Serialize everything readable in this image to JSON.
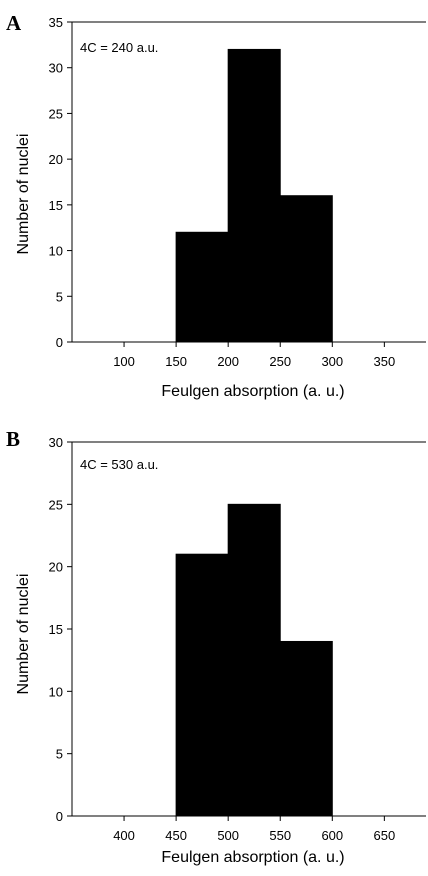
{
  "colors": {
    "bar": "#000000",
    "axis": "#000000",
    "background": "#ffffff"
  },
  "chart_data": [
    {
      "type": "bar",
      "panel": "A",
      "annotation": "4C = 240 a.u.",
      "xlabel": "Feulgen absorption (a. u.)",
      "ylabel": "Number of nuclei",
      "xlim": [
        50,
        390
      ],
      "ylim": [
        0,
        35
      ],
      "xticks": [
        100,
        150,
        200,
        250,
        300,
        350
      ],
      "yticks": [
        0,
        5,
        10,
        15,
        20,
        25,
        30,
        35
      ],
      "bins": [
        {
          "x0": 150,
          "x1": 200,
          "value": 12
        },
        {
          "x0": 200,
          "x1": 250,
          "value": 32
        },
        {
          "x0": 250,
          "x1": 300,
          "value": 16
        }
      ],
      "grid": false,
      "legend": "none"
    },
    {
      "type": "bar",
      "panel": "B",
      "annotation": "4C = 530 a.u.",
      "xlabel": "Feulgen absorption (a. u.)",
      "ylabel": "Number of nuclei",
      "xlim": [
        350,
        690
      ],
      "ylim": [
        0,
        30
      ],
      "xticks": [
        400,
        450,
        500,
        550,
        600,
        650
      ],
      "yticks": [
        0,
        5,
        10,
        15,
        20,
        25,
        30
      ],
      "bins": [
        {
          "x0": 450,
          "x1": 500,
          "value": 21
        },
        {
          "x0": 500,
          "x1": 550,
          "value": 25
        },
        {
          "x0": 550,
          "x1": 600,
          "value": 14
        }
      ],
      "grid": false,
      "legend": "none"
    }
  ]
}
